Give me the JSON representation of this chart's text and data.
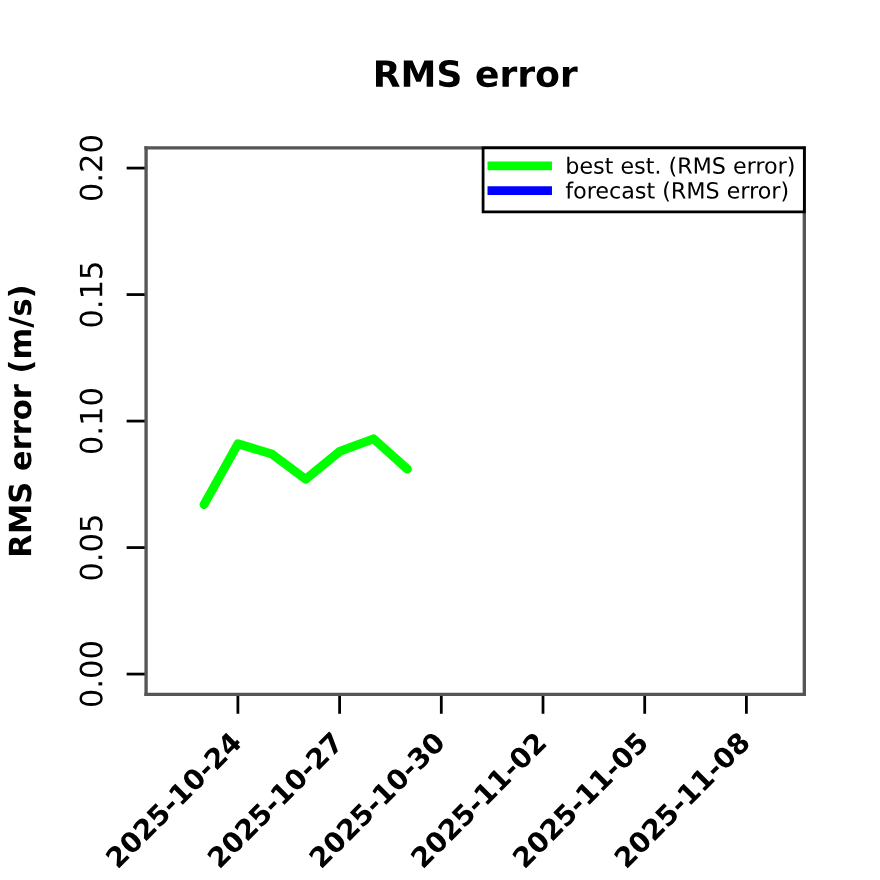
{
  "chart_data": {
    "type": "line",
    "title": "RMS error",
    "ylabel": "RMS error (m/s)",
    "series": [
      {
        "name": "best est. (RMS error)",
        "color": "#00ff00",
        "x": [
          "2025-10-23",
          "2025-10-24",
          "2025-10-25",
          "2025-10-26",
          "2025-10-27",
          "2025-10-28",
          "2025-10-29"
        ],
        "values": [
          0.067,
          0.091,
          0.087,
          0.077,
          0.088,
          0.093,
          0.081
        ]
      },
      {
        "name": "forecast (RMS error)",
        "color": "#0000ff"
      }
    ],
    "xlim": [
      "2025-10-21T07:00",
      "2025-11-09T17:00"
    ],
    "xticks": [
      "2025-10-24",
      "2025-10-27",
      "2025-10-30",
      "2025-11-02",
      "2025-11-05",
      "2025-11-08"
    ],
    "ylim": [
      -0.008,
      0.208
    ],
    "yticks": [
      {
        "value": 0,
        "label": "0.00"
      },
      {
        "value": 0.05,
        "label": "0.05"
      },
      {
        "value": 0.1,
        "label": "0.10"
      },
      {
        "value": 0.15,
        "label": "0.15"
      },
      {
        "value": 0.2,
        "label": "0.20"
      }
    ],
    "legend": "top right",
    "line_style": "solid"
  }
}
